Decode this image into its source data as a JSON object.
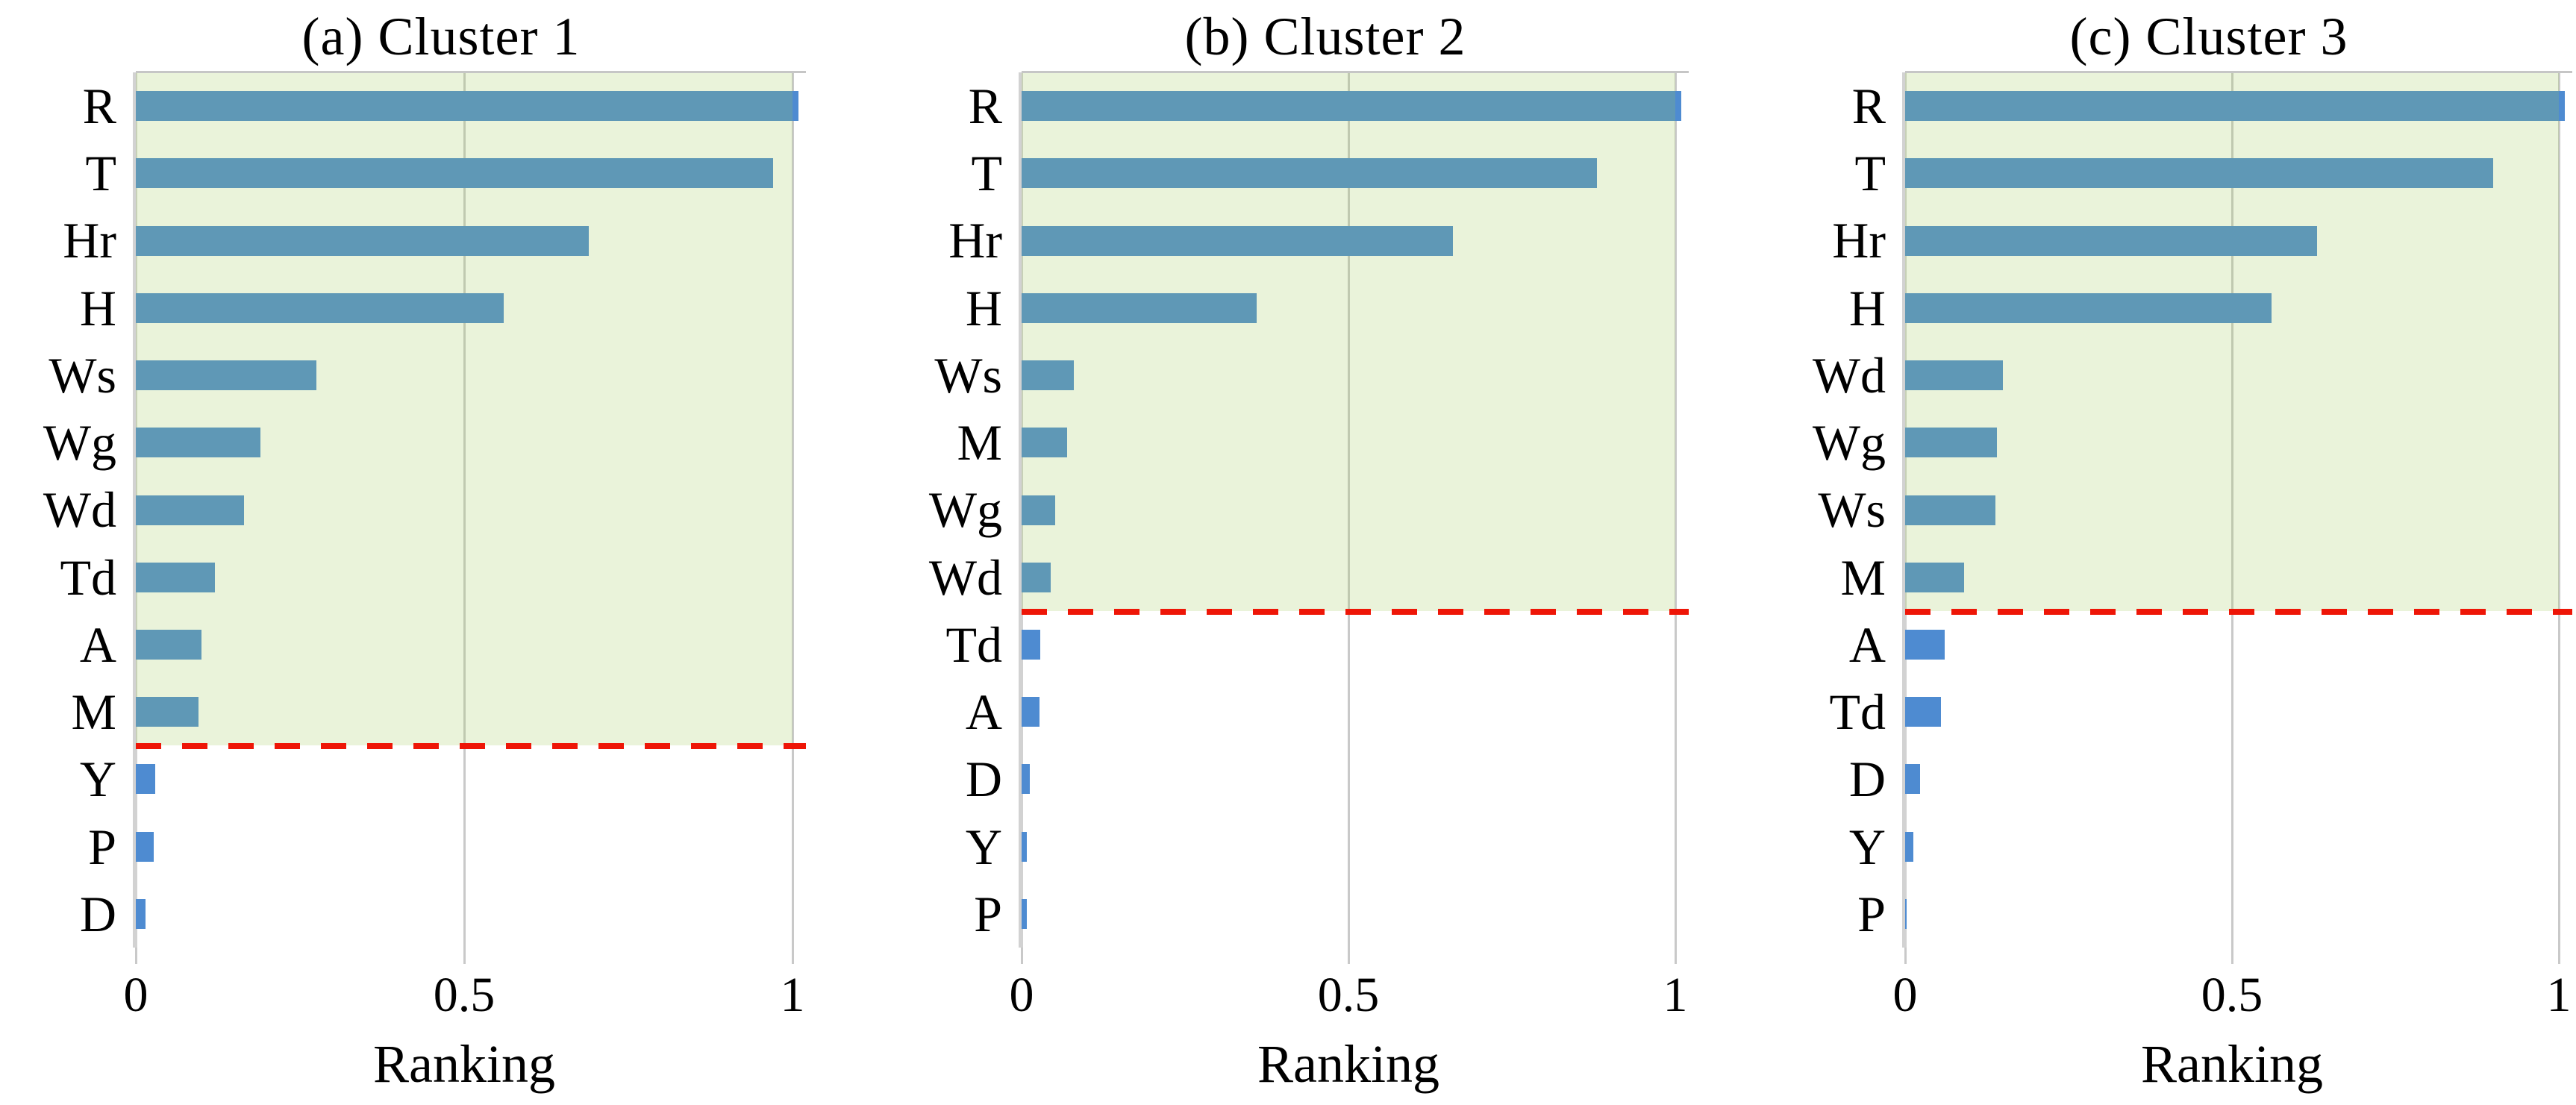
{
  "figure_caption_note": "Feature importance ranking bar charts for three clusters",
  "xlabel": "Ranking",
  "x_ticks": [
    "0",
    "0.5",
    "1"
  ],
  "colors": {
    "bar_blue": "#4e8bd1",
    "bar_teal_under_shade_appearance": "#5fa2b8",
    "shade_green_rgba": "rgba(160,200,88,0.22)",
    "shade_on_white_appearance": "#eaf3da",
    "threshold_red": "#ee1607",
    "grid_gray": "#c9c9c9",
    "axis_gray": "#d2d2d2",
    "text_black": "#000000"
  },
  "chart_data": [
    {
      "type": "bar",
      "orientation": "horizontal",
      "title": "(a) Cluster 1",
      "xlabel": "Ranking",
      "x_ticks": [
        "0",
        "0.5",
        "1"
      ],
      "xlim": [
        0,
        1.02
      ],
      "grid": "vertical at 0, 0.5, 1",
      "categories": [
        "R",
        "T",
        "Hr",
        "H",
        "Ws",
        "Wg",
        "Wd",
        "Td",
        "A",
        "M",
        "Y",
        "P",
        "D"
      ],
      "values": [
        1.0,
        0.97,
        0.69,
        0.56,
        0.275,
        0.19,
        0.165,
        0.12,
        0.1,
        0.095,
        0.03,
        0.027,
        0.015
      ],
      "above_threshold_count": 10,
      "threshold_after_category": "M",
      "annotations": [
        "green shaded region over top-ranked features",
        "red dashed threshold line below M"
      ]
    },
    {
      "type": "bar",
      "orientation": "horizontal",
      "title": "(b) Cluster 2",
      "xlabel": "Ranking",
      "x_ticks": [
        "0",
        "0.5",
        "1"
      ],
      "xlim": [
        0,
        1.02
      ],
      "grid": "vertical at 0, 0.5, 1",
      "categories": [
        "R",
        "T",
        "Hr",
        "H",
        "Ws",
        "M",
        "Wg",
        "Wd",
        "Td",
        "A",
        "D",
        "Y",
        "P"
      ],
      "values": [
        1.0,
        0.88,
        0.66,
        0.36,
        0.08,
        0.07,
        0.051,
        0.045,
        0.028,
        0.027,
        0.013,
        0.008,
        0.008
      ],
      "above_threshold_count": 8,
      "threshold_after_category": "Wd",
      "annotations": [
        "green shaded region over top-ranked features",
        "red dashed threshold line below Wd"
      ]
    },
    {
      "type": "bar",
      "orientation": "horizontal",
      "title": "(c) Cluster 3",
      "xlabel": "Ranking",
      "x_ticks": [
        "0",
        "0.5",
        "1"
      ],
      "xlim": [
        0,
        1.02
      ],
      "grid": "vertical at 0, 0.5, 1",
      "categories": [
        "R",
        "T",
        "Hr",
        "H",
        "Wd",
        "Wg",
        "Ws",
        "M",
        "A",
        "Td",
        "D",
        "Y",
        "P"
      ],
      "values": [
        1.0,
        0.9,
        0.63,
        0.56,
        0.15,
        0.14,
        0.138,
        0.09,
        0.06,
        0.055,
        0.023,
        0.012,
        0.002
      ],
      "above_threshold_count": 8,
      "threshold_after_category": "M",
      "annotations": [
        "green shaded region over top-ranked features",
        "red dashed threshold line below M"
      ]
    }
  ]
}
